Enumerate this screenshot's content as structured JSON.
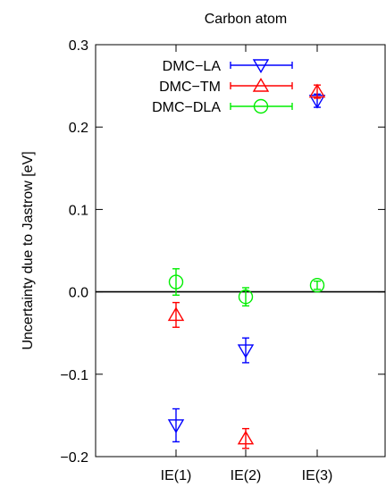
{
  "chart_data": {
    "type": "scatter",
    "title": "Carbon atom",
    "xlabel": "",
    "ylabel": "Uncertainty due to Jastrow [eV]",
    "categories": [
      "IE(1)",
      "IE(2)",
      "IE(3)"
    ],
    "ylim": [
      -0.2,
      0.3
    ],
    "yticks": [
      "−0.2",
      "−0.1",
      "0.0",
      "0.1",
      "0.2",
      "0.3"
    ],
    "yticks_values": [
      -0.2,
      -0.1,
      0.0,
      0.1,
      0.2,
      0.3
    ],
    "zero_line": true,
    "grid": false,
    "legend_position": "top-left",
    "series": [
      {
        "name": "DMC−LA",
        "color": "#0000ff",
        "marker": "triangle-down",
        "values": [
          -0.162,
          -0.071,
          0.232
        ],
        "errors": [
          0.02,
          0.015,
          0.008
        ]
      },
      {
        "name": "DMC−TM",
        "color": "#ff0000",
        "marker": "triangle-up",
        "values": [
          -0.028,
          -0.178,
          0.243
        ],
        "errors": [
          0.015,
          0.012,
          0.008
        ]
      },
      {
        "name": "DMC−DLA",
        "color": "#00ee00",
        "marker": "circle",
        "values": [
          0.012,
          -0.006,
          0.008
        ],
        "errors": [
          0.016,
          0.011,
          0.005
        ]
      }
    ]
  }
}
